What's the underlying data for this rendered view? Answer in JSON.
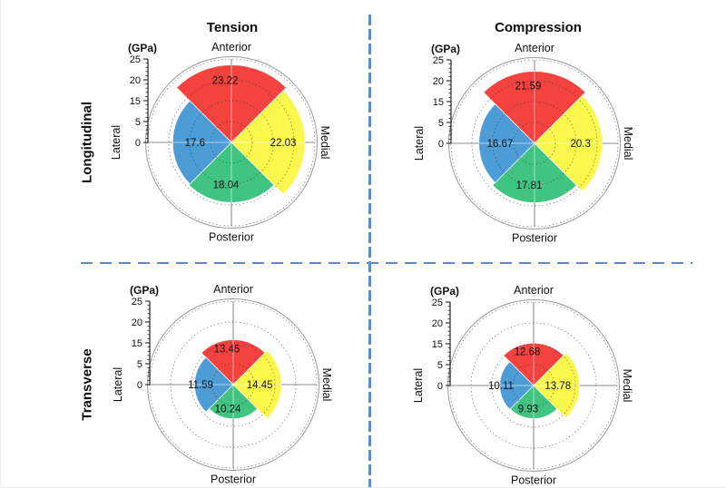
{
  "cols": [
    {
      "label": "Tension"
    },
    {
      "label": "Compression"
    }
  ],
  "rows": [
    {
      "label": "Longitudinal"
    },
    {
      "label": "Transverse"
    }
  ],
  "axis": {
    "unit_label": "(GPa)",
    "max": 25,
    "tick_labels": [
      "25",
      "20",
      "15",
      "5",
      "0"
    ],
    "tick_values": [
      25,
      20,
      15,
      5,
      0
    ]
  },
  "directions": {
    "top": "Anterior",
    "right": "Medial",
    "bottom": "Posterior",
    "left": "Lateral"
  },
  "colors": {
    "Anterior": "#F4423F",
    "Medial": "#FBF74D",
    "Posterior": "#41C481",
    "Lateral": "#4E9CD5",
    "divider": "#5C8CC5",
    "gridline": "#3C3C3C",
    "outer_ring": "#9A9A9A",
    "text": "#111111"
  },
  "chart_data": [
    {
      "type": "polar-quadrant-bar",
      "row": "Longitudinal",
      "col": "Tension",
      "unit": "GPa",
      "rlim": [
        0,
        25
      ],
      "grid": "dotted-circles",
      "legend": "none",
      "wedges": [
        {
          "direction": "Anterior",
          "value": 23.22,
          "label": "23.22"
        },
        {
          "direction": "Medial",
          "value": 22.03,
          "label": "22.03"
        },
        {
          "direction": "Posterior",
          "value": 18.04,
          "label": "18.04"
        },
        {
          "direction": "Lateral",
          "value": 17.6,
          "label": "17.6"
        }
      ]
    },
    {
      "type": "polar-quadrant-bar",
      "row": "Longitudinal",
      "col": "Compression",
      "unit": "GPa",
      "rlim": [
        0,
        25
      ],
      "grid": "dotted-circles",
      "legend": "none",
      "wedges": [
        {
          "direction": "Anterior",
          "value": 21.59,
          "label": "21.59"
        },
        {
          "direction": "Medial",
          "value": 20.3,
          "label": "20.3"
        },
        {
          "direction": "Posterior",
          "value": 17.81,
          "label": "17.81"
        },
        {
          "direction": "Lateral",
          "value": 16.67,
          "label": "16.67"
        }
      ]
    },
    {
      "type": "polar-quadrant-bar",
      "row": "Transverse",
      "col": "Tension",
      "unit": "GPa",
      "rlim": [
        0,
        25
      ],
      "grid": "dotted-circles",
      "legend": "none",
      "wedges": [
        {
          "direction": "Anterior",
          "value": 13.45,
          "label": "13.45"
        },
        {
          "direction": "Medial",
          "value": 14.45,
          "label": "14.45"
        },
        {
          "direction": "Posterior",
          "value": 10.24,
          "label": "10.24"
        },
        {
          "direction": "Lateral",
          "value": 11.59,
          "label": "11.59"
        }
      ]
    },
    {
      "type": "polar-quadrant-bar",
      "row": "Transverse",
      "col": "Compression",
      "unit": "GPa",
      "rlim": [
        0,
        25
      ],
      "grid": "dotted-circles",
      "legend": "none",
      "wedges": [
        {
          "direction": "Anterior",
          "value": 12.68,
          "label": "12.68"
        },
        {
          "direction": "Medial",
          "value": 13.78,
          "label": "13.78"
        },
        {
          "direction": "Posterior",
          "value": 9.93,
          "label": "9.93"
        },
        {
          "direction": "Lateral",
          "value": 10.11,
          "label": "10.11"
        }
      ]
    }
  ]
}
